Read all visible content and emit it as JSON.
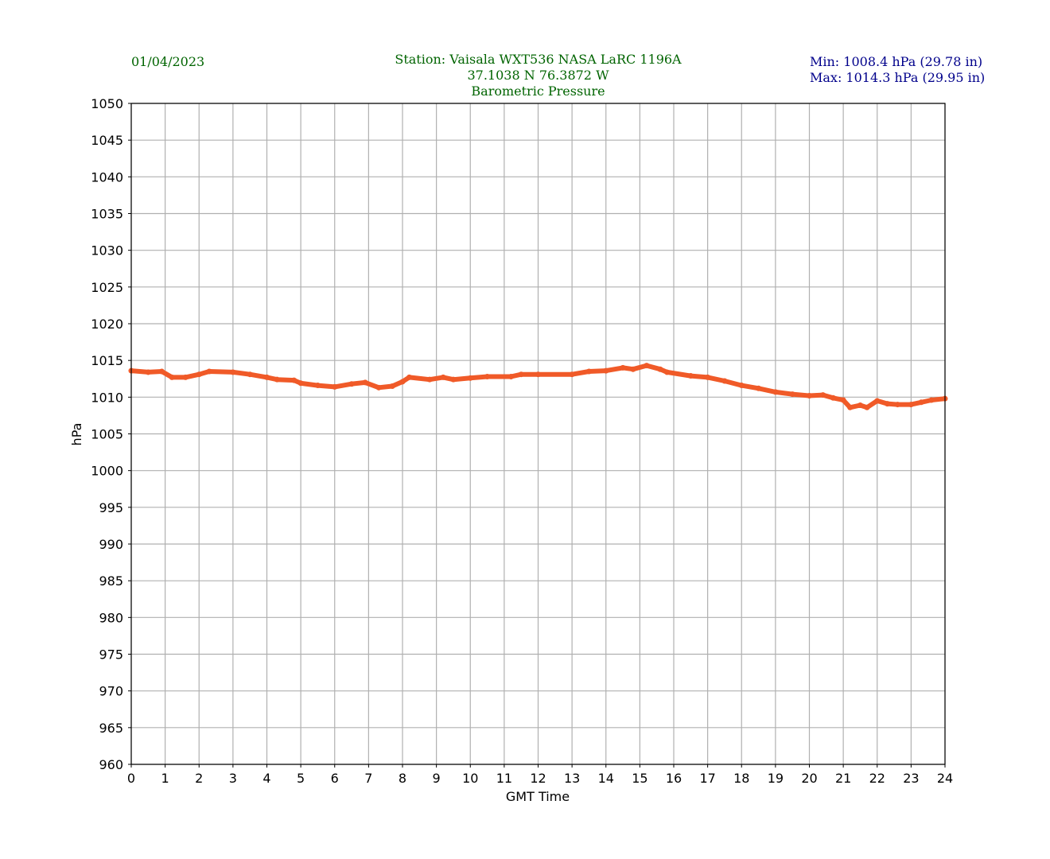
{
  "header": {
    "date": "01/04/2023",
    "station_line": "Station:  Vaisala WXT536  NASA LaRC 1196A",
    "coords_line": "37.1038 N 76.3872 W",
    "title": "Barometric Pressure",
    "min_text": "Min: 1008.4 hPa (29.78 in)",
    "max_text": "Max: 1014.3 hPa (29.95 in)"
  },
  "colors": {
    "line": "#f05a28",
    "title": "#006400",
    "minmax": "#00008b",
    "grid": "#b0b0b0"
  },
  "chart_data": {
    "type": "line",
    "title": "Barometric Pressure",
    "xlabel": "GMT Time",
    "ylabel": "hPa",
    "xlim": [
      0,
      24
    ],
    "ylim": [
      960,
      1050
    ],
    "xticks": [
      0,
      1,
      2,
      3,
      4,
      5,
      6,
      7,
      8,
      9,
      10,
      11,
      12,
      13,
      14,
      15,
      16,
      17,
      18,
      19,
      20,
      21,
      22,
      23,
      24
    ],
    "yticks": [
      960,
      965,
      970,
      975,
      980,
      985,
      990,
      995,
      1000,
      1005,
      1010,
      1015,
      1020,
      1025,
      1030,
      1035,
      1040,
      1045,
      1050
    ],
    "grid": true,
    "series": [
      {
        "name": "Pressure",
        "x": [
          0,
          0.5,
          0.9,
          1.2,
          1.6,
          2,
          2.3,
          3,
          3.5,
          4,
          4.3,
          4.8,
          5,
          5.5,
          6,
          6.5,
          6.9,
          7.3,
          7.7,
          8,
          8.2,
          8.8,
          9.2,
          9.5,
          10,
          10.5,
          11.2,
          11.5,
          12,
          13,
          13.5,
          14,
          14.5,
          14.8,
          15.2,
          15.6,
          15.8,
          16.5,
          17,
          17.5,
          18,
          18.5,
          19,
          19.5,
          20,
          20.4,
          20.7,
          21,
          21.2,
          21.5,
          21.7,
          22,
          22.3,
          22.6,
          23,
          23.3,
          23.6,
          24
        ],
        "y": [
          1013.6,
          1013.4,
          1013.5,
          1012.7,
          1012.7,
          1013.1,
          1013.5,
          1013.4,
          1013.1,
          1012.7,
          1012.4,
          1012.3,
          1011.9,
          1011.6,
          1011.4,
          1011.8,
          1012.0,
          1011.3,
          1011.5,
          1012.1,
          1012.7,
          1012.4,
          1012.7,
          1012.4,
          1012.6,
          1012.8,
          1012.8,
          1013.1,
          1013.1,
          1013.1,
          1013.5,
          1013.6,
          1014.0,
          1013.8,
          1014.3,
          1013.8,
          1013.4,
          1012.9,
          1012.7,
          1012.2,
          1011.6,
          1011.2,
          1010.7,
          1010.4,
          1010.2,
          1010.3,
          1009.9,
          1009.6,
          1008.6,
          1008.9,
          1008.6,
          1009.5,
          1009.1,
          1009.0,
          1009.0,
          1009.3,
          1009.6,
          1009.8
        ]
      }
    ]
  }
}
